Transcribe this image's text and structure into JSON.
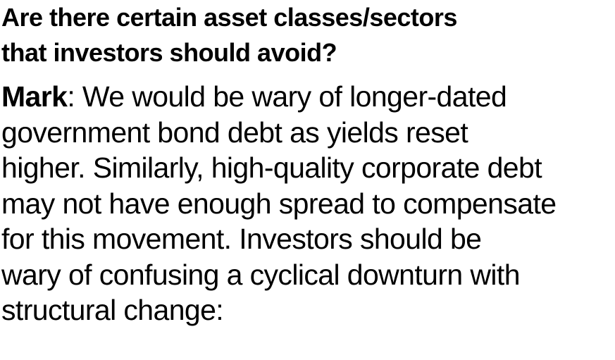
{
  "question": {
    "lines": [
      "Are there certain asset classes/sectors",
      "that investors should avoid?"
    ]
  },
  "answer": {
    "speaker": "Mark",
    "separator": ": ",
    "first_line_rest": "We would be wary of longer-dated",
    "lines": [
      "government bond debt as yields reset",
      "higher. Similarly, high-quality corporate debt",
      "may not have enough spread to compensate",
      "for this movement. Investors should be",
      "wary of confusing a cyclical downturn with",
      "structural change:"
    ]
  }
}
